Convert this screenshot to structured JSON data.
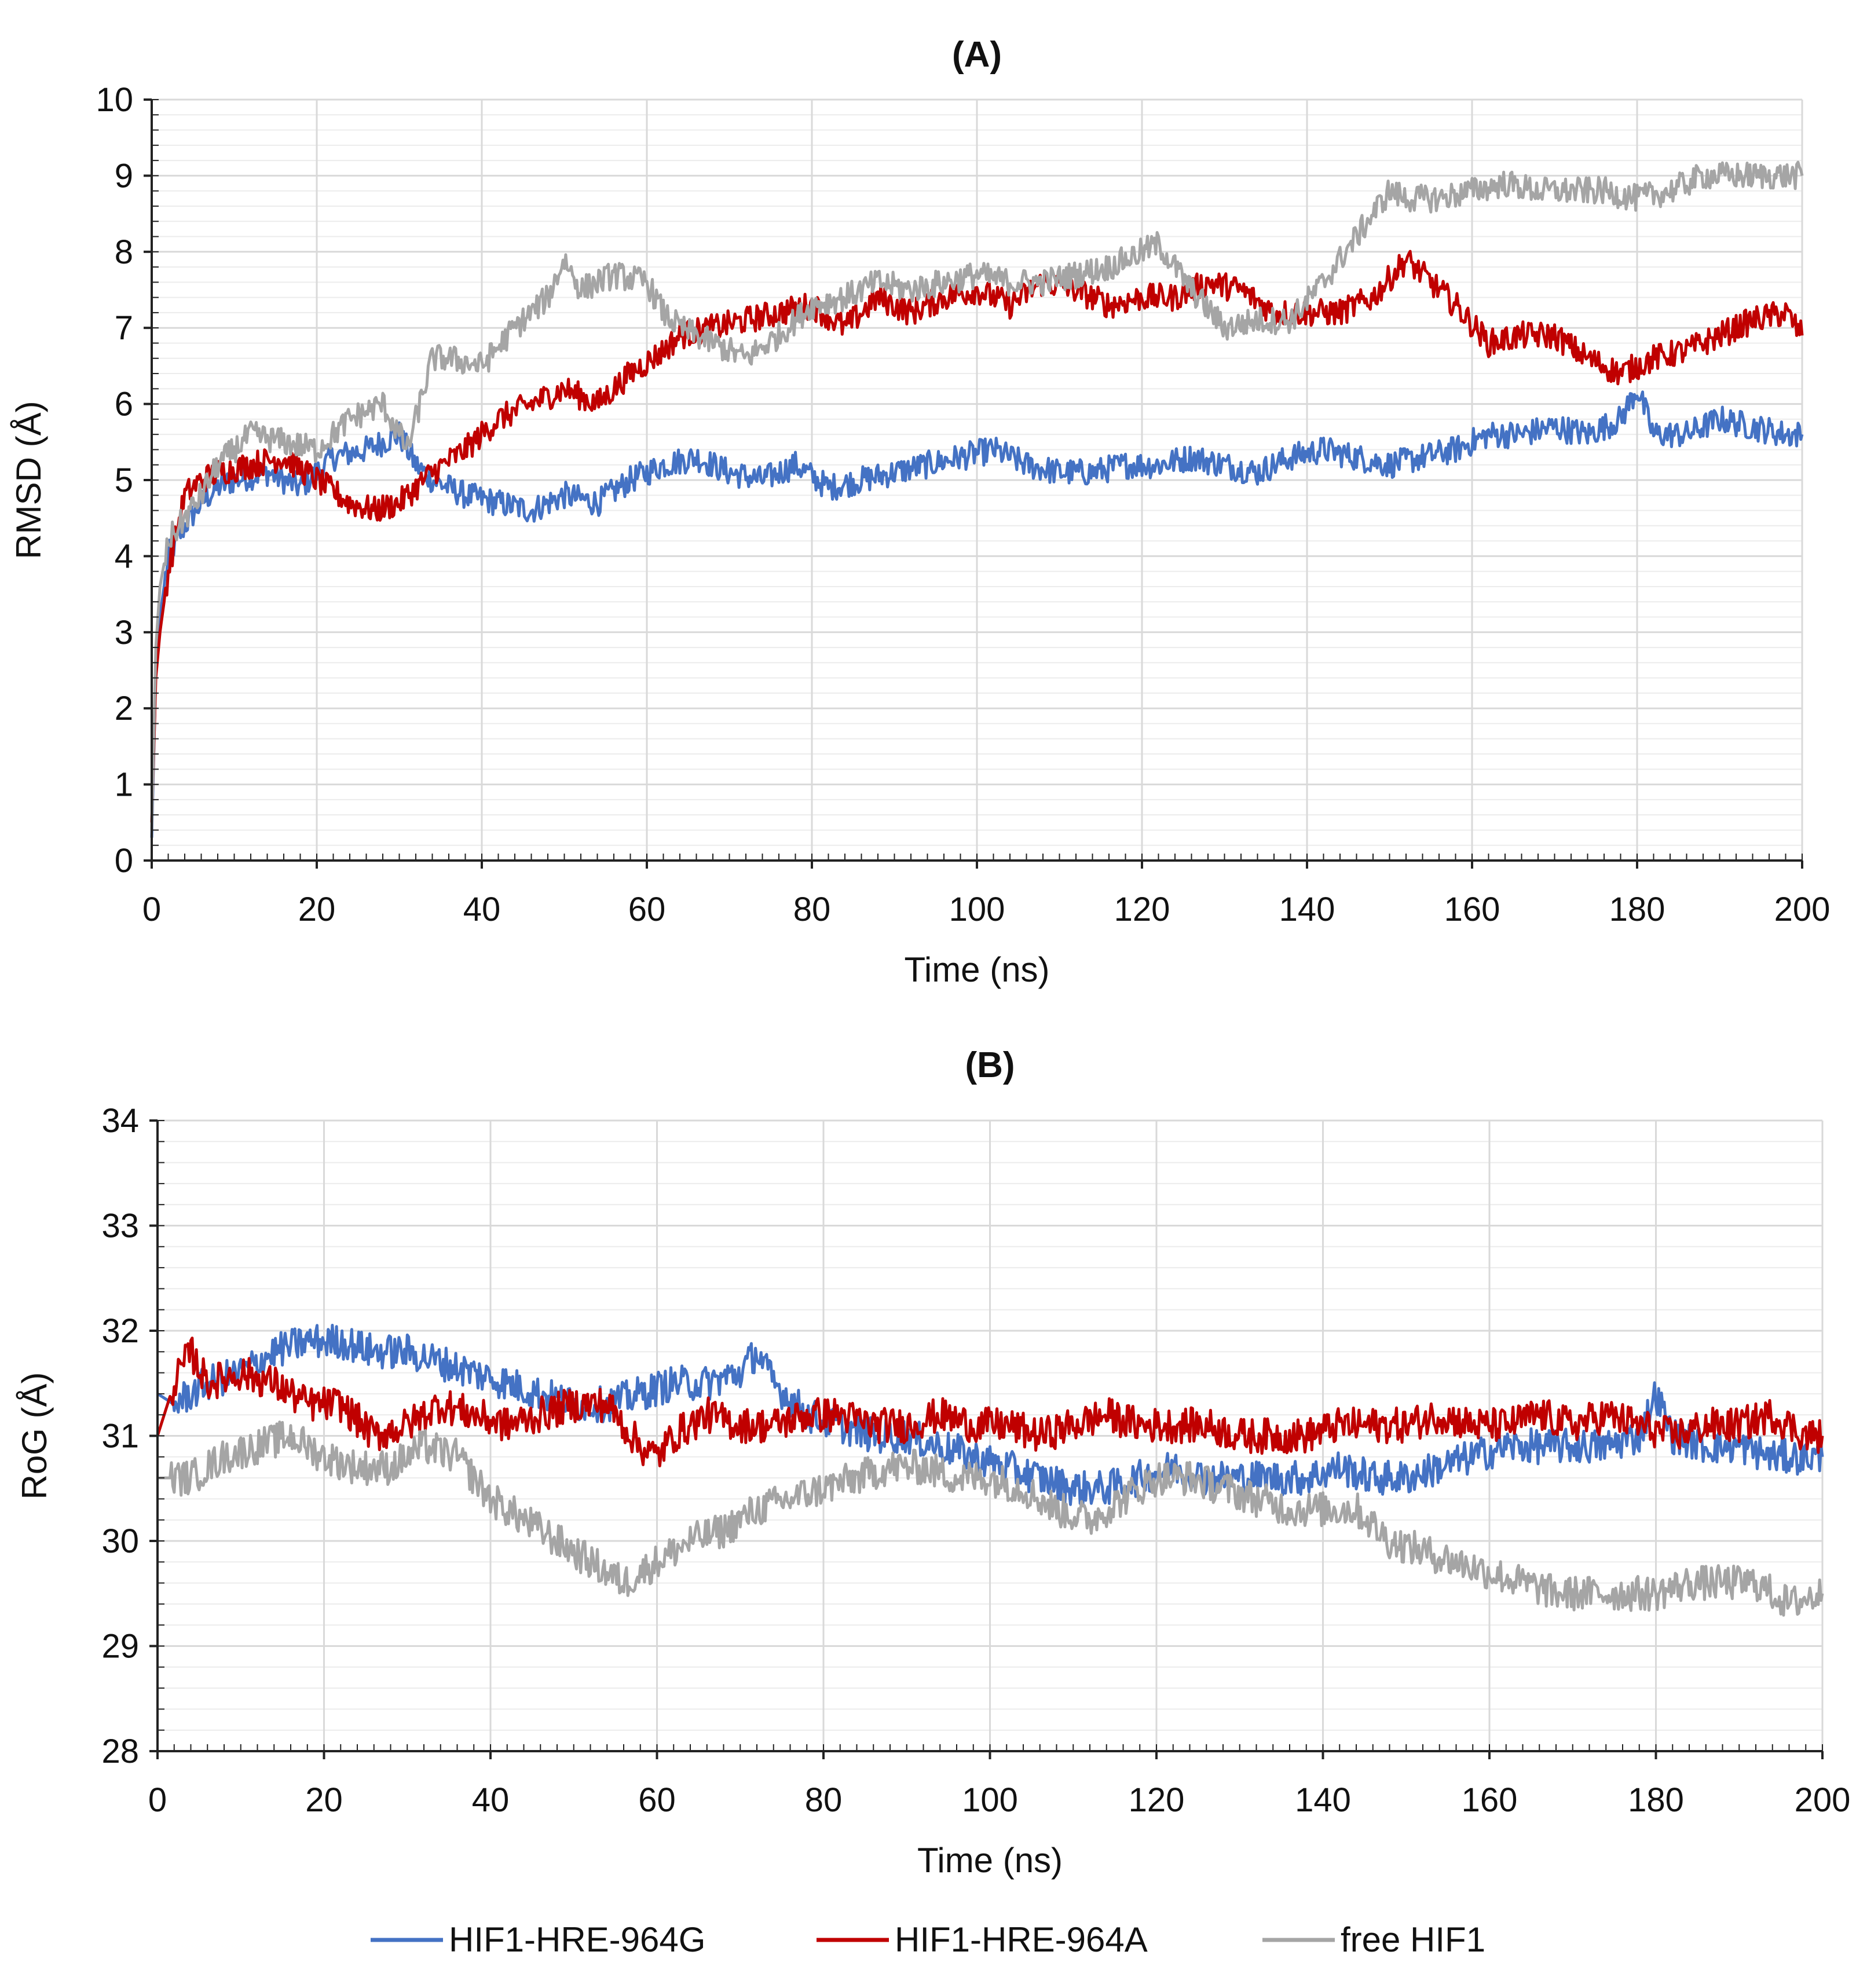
{
  "colors": {
    "blue": "#4472c4",
    "red": "#c00000",
    "gray": "#a5a5a5",
    "grid": "#d9d9d9",
    "minor_grid": "#ececec",
    "axis": "#222222"
  },
  "legend": {
    "items": [
      {
        "label": "HIF1-HRE-964G",
        "color_key": "blue"
      },
      {
        "label": "HIF1-HRE-964A",
        "color_key": "red"
      },
      {
        "label": "free HIF1",
        "color_key": "gray"
      }
    ]
  },
  "chart_data": [
    {
      "type": "line",
      "title": "(A)",
      "xlabel": "Time (ns)",
      "ylabel": "RMSD (Å)",
      "xlim": [
        0,
        200
      ],
      "ylim": [
        0,
        10
      ],
      "xticks": [
        0,
        20,
        40,
        60,
        80,
        100,
        120,
        140,
        160,
        180,
        200
      ],
      "yticks": [
        0,
        1,
        2,
        3,
        4,
        5,
        6,
        7,
        8,
        9,
        10
      ],
      "grid": true,
      "series": [
        {
          "name": "HIF1-HRE-964G",
          "color_key": "blue",
          "x": [
            0,
            0.5,
            1,
            2,
            4,
            6,
            8,
            10,
            14,
            18,
            22,
            26,
            30,
            32,
            34,
            38,
            42,
            46,
            50,
            54,
            58,
            62,
            66,
            70,
            74,
            78,
            82,
            86,
            90,
            94,
            98,
            102,
            106,
            110,
            114,
            118,
            122,
            126,
            130,
            134,
            138,
            142,
            146,
            150,
            154,
            158,
            162,
            166,
            170,
            174,
            178,
            180,
            182,
            186,
            190,
            194,
            198,
            200
          ],
          "y": [
            0.3,
            2.5,
            3.2,
            4.0,
            4.4,
            4.7,
            4.9,
            5.0,
            5.1,
            4.9,
            5.3,
            5.4,
            5.6,
            5.2,
            5.0,
            4.8,
            4.7,
            4.6,
            4.8,
            4.7,
            5.0,
            5.2,
            5.3,
            5.1,
            5.0,
            5.2,
            4.9,
            5.0,
            5.1,
            5.2,
            5.3,
            5.4,
            5.2,
            5.1,
            5.1,
            5.2,
            5.2,
            5.3,
            5.2,
            5.1,
            5.3,
            5.4,
            5.3,
            5.2,
            5.3,
            5.4,
            5.6,
            5.6,
            5.7,
            5.6,
            5.8,
            6.2,
            5.6,
            5.6,
            5.8,
            5.7,
            5.6,
            5.6
          ]
        },
        {
          "name": "HIF1-HRE-964A",
          "color_key": "red",
          "x": [
            0,
            0.5,
            1,
            2,
            4,
            6,
            8,
            12,
            16,
            20,
            24,
            27,
            30,
            34,
            38,
            42,
            46,
            50,
            54,
            58,
            62,
            64,
            68,
            72,
            76,
            80,
            84,
            88,
            92,
            96,
            100,
            104,
            108,
            112,
            116,
            120,
            124,
            128,
            132,
            136,
            140,
            144,
            148,
            152,
            154,
            158,
            162,
            166,
            170,
            174,
            178,
            182,
            186,
            190,
            194,
            198,
            200
          ],
          "y": [
            0.5,
            2.4,
            3.0,
            3.8,
            4.8,
            5.0,
            5.1,
            5.2,
            5.3,
            5.0,
            4.7,
            4.6,
            4.7,
            5.1,
            5.4,
            5.8,
            6.0,
            6.2,
            6.0,
            6.4,
            6.7,
            6.9,
            7.0,
            7.1,
            7.2,
            7.3,
            7.0,
            7.4,
            7.2,
            7.4,
            7.5,
            7.3,
            7.6,
            7.5,
            7.3,
            7.4,
            7.4,
            7.6,
            7.5,
            7.2,
            7.2,
            7.2,
            7.4,
            7.9,
            7.7,
            7.3,
            6.8,
            6.9,
            6.9,
            6.6,
            6.4,
            6.6,
            6.7,
            6.9,
            7.1,
            7.2,
            6.9
          ]
        },
        {
          "name": "free HIF1",
          "color_key": "gray",
          "x": [
            0,
            0.5,
            1,
            2,
            4,
            6,
            8,
            12,
            16,
            20,
            24,
            28,
            31,
            34,
            36,
            40,
            44,
            48,
            50,
            52,
            56,
            60,
            62,
            64,
            68,
            72,
            76,
            80,
            84,
            88,
            92,
            96,
            100,
            104,
            108,
            112,
            116,
            120,
            122,
            126,
            130,
            134,
            138,
            142,
            146,
            150,
            152,
            156,
            160,
            164,
            168,
            172,
            176,
            180,
            184,
            188,
            192,
            196,
            200
          ],
          "y": [
            0.4,
            2.8,
            3.6,
            4.2,
            4.5,
            4.8,
            5.2,
            5.6,
            5.5,
            5.4,
            5.8,
            6.0,
            5.4,
            6.6,
            6.6,
            6.5,
            7.0,
            7.4,
            7.9,
            7.5,
            7.7,
            7.6,
            7.2,
            7.0,
            6.8,
            6.6,
            6.9,
            7.3,
            7.4,
            7.6,
            7.5,
            7.6,
            7.7,
            7.6,
            7.6,
            7.7,
            7.8,
            8.0,
            8.1,
            7.5,
            7.0,
            7.1,
            7.1,
            7.6,
            8.2,
            8.8,
            8.7,
            8.7,
            8.8,
            8.9,
            8.8,
            8.8,
            8.8,
            8.7,
            8.8,
            9.0,
            9.0,
            9.0,
            9.0
          ]
        }
      ]
    },
    {
      "type": "line",
      "title": "(B)",
      "xlabel": "Time (ns)",
      "ylabel": "RoG (Å)",
      "xlim": [
        0,
        200
      ],
      "ylim": [
        28,
        34
      ],
      "xticks": [
        0,
        20,
        40,
        60,
        80,
        100,
        120,
        140,
        160,
        180,
        200
      ],
      "yticks": [
        28,
        29,
        30,
        31,
        32,
        33,
        34
      ],
      "grid": true,
      "series": [
        {
          "name": "HIF1-HRE-964G",
          "color_key": "blue",
          "x": [
            0,
            2,
            6,
            10,
            14,
            18,
            22,
            26,
            30,
            34,
            38,
            42,
            46,
            50,
            54,
            58,
            62,
            66,
            70,
            72,
            74,
            78,
            82,
            86,
            90,
            94,
            98,
            102,
            106,
            110,
            114,
            118,
            122,
            126,
            130,
            134,
            138,
            142,
            146,
            150,
            154,
            158,
            162,
            166,
            170,
            174,
            178,
            180,
            182,
            186,
            190,
            194,
            198,
            200
          ],
          "y": [
            31.4,
            31.3,
            31.5,
            31.6,
            31.8,
            31.9,
            31.9,
            31.8,
            31.8,
            31.7,
            31.6,
            31.5,
            31.4,
            31.3,
            31.3,
            31.4,
            31.5,
            31.5,
            31.6,
            31.8,
            31.5,
            31.2,
            31.1,
            31.0,
            31.0,
            30.9,
            30.8,
            30.7,
            30.6,
            30.5,
            30.5,
            30.6,
            30.7,
            30.6,
            30.6,
            30.6,
            30.6,
            30.7,
            30.6,
            30.6,
            30.7,
            30.8,
            30.9,
            30.9,
            30.9,
            30.9,
            31.0,
            31.4,
            31.0,
            30.9,
            30.9,
            30.8,
            30.8,
            30.8
          ]
        },
        {
          "name": "HIF1-HRE-964A",
          "color_key": "red",
          "x": [
            0,
            2,
            4,
            6,
            10,
            14,
            18,
            22,
            26,
            30,
            34,
            38,
            42,
            46,
            50,
            54,
            56,
            58,
            60,
            62,
            66,
            70,
            74,
            78,
            82,
            86,
            90,
            94,
            98,
            102,
            106,
            110,
            114,
            118,
            122,
            126,
            130,
            134,
            138,
            142,
            146,
            150,
            154,
            158,
            162,
            166,
            170,
            174,
            178,
            182,
            186,
            190,
            194,
            198,
            200
          ],
          "y": [
            31.0,
            31.5,
            31.8,
            31.5,
            31.6,
            31.5,
            31.3,
            31.3,
            31.0,
            31.1,
            31.3,
            31.2,
            31.1,
            31.2,
            31.3,
            31.3,
            31.1,
            30.9,
            30.8,
            31.0,
            31.2,
            31.1,
            31.1,
            31.2,
            31.2,
            31.1,
            31.1,
            31.2,
            31.1,
            31.1,
            31.0,
            31.1,
            31.2,
            31.1,
            31.1,
            31.1,
            31.0,
            31.0,
            31.0,
            31.1,
            31.1,
            31.1,
            31.2,
            31.1,
            31.1,
            31.2,
            31.1,
            31.2,
            31.1,
            31.0,
            31.1,
            31.1,
            31.2,
            31.0,
            31.0
          ]
        },
        {
          "name": "free HIF1",
          "color_key": "gray",
          "x": [
            0,
            4,
            8,
            12,
            16,
            20,
            24,
            28,
            32,
            36,
            40,
            44,
            48,
            52,
            56,
            60,
            64,
            68,
            72,
            76,
            80,
            84,
            88,
            92,
            96,
            100,
            104,
            108,
            112,
            116,
            120,
            124,
            128,
            132,
            136,
            140,
            144,
            148,
            152,
            156,
            160,
            164,
            168,
            172,
            176,
            180,
            184,
            188,
            192,
            196,
            200
          ],
          "y": [
            30.6,
            30.6,
            30.8,
            30.9,
            31.0,
            30.8,
            30.7,
            30.7,
            30.9,
            30.8,
            30.4,
            30.2,
            30.0,
            29.8,
            29.6,
            29.8,
            30.0,
            30.1,
            30.3,
            30.4,
            30.5,
            30.6,
            30.7,
            30.7,
            30.6,
            30.6,
            30.5,
            30.3,
            30.2,
            30.4,
            30.6,
            30.6,
            30.5,
            30.4,
            30.3,
            30.3,
            30.3,
            30.0,
            29.9,
            29.8,
            29.7,
            29.6,
            29.5,
            29.5,
            29.5,
            29.5,
            29.6,
            29.6,
            29.6,
            29.4,
            29.5
          ]
        }
      ]
    }
  ]
}
